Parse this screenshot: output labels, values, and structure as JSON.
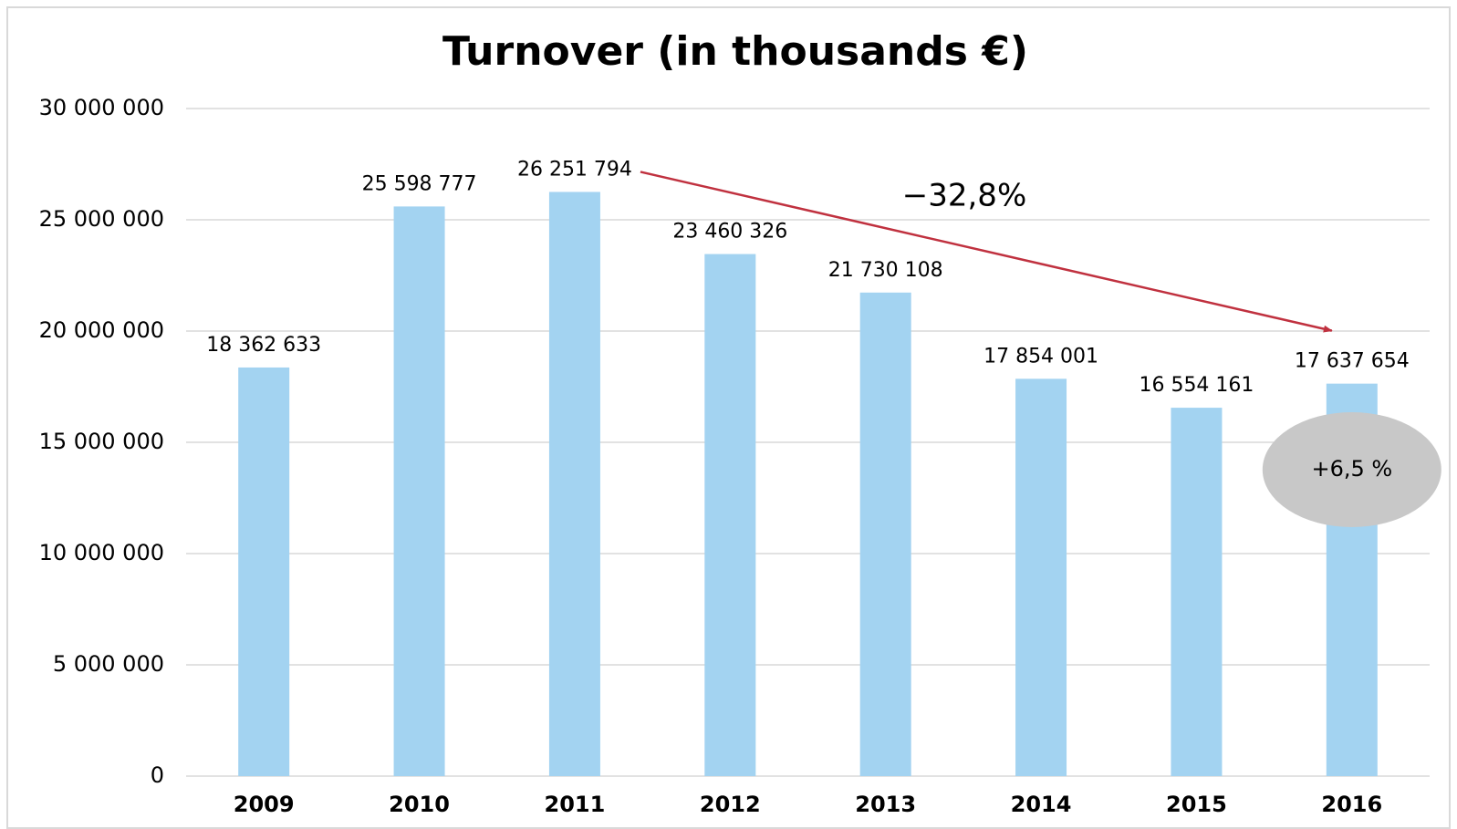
{
  "chart_data": {
    "type": "bar",
    "title": "Turnover (in thousands €)",
    "categories": [
      "2009",
      "2010",
      "2011",
      "2012",
      "2013",
      "2014",
      "2015",
      "2016"
    ],
    "values": [
      18362633,
      25598777,
      26251794,
      23460326,
      21730108,
      17854001,
      16554161,
      17637654
    ],
    "value_labels": [
      "18 362 633",
      "25 598 777",
      "26 251 794",
      "23 460 326",
      "21 730 108",
      "17 854 001",
      "16 554 161",
      "17 637 654"
    ],
    "color": "#a3d3f1",
    "ylim": [
      0,
      30000000
    ],
    "yticks": [
      0,
      {
        "value": 5000000,
        "label": "5 000 000"
      },
      {
        "value": 10000000,
        "label": "10 000 000"
      },
      {
        "value": 15000000,
        "label": "15 000 000"
      },
      {
        "value": 20000000,
        "label": "20 000 000"
      },
      {
        "value": 25000000,
        "label": "25 000 000"
      },
      {
        "value": 30000000,
        "label": "30 000 000"
      }
    ],
    "grid": true,
    "annotations": [
      {
        "text": "−32,8%",
        "color": "#c0313f"
      },
      {
        "text": "+6,5 %",
        "color": "#c8c8c8"
      }
    ]
  }
}
